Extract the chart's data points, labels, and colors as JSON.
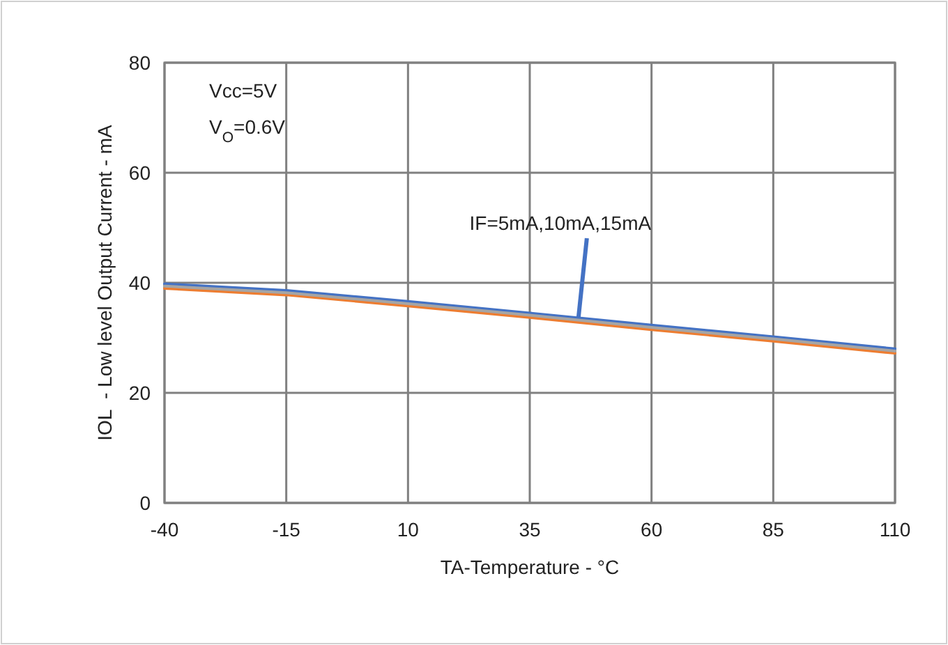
{
  "chart_data": {
    "type": "line",
    "xlabel": "TA-Temperature - °C",
    "ylabel": "IOL  - Low level Output Current - mA",
    "x": [
      -40,
      -15,
      10,
      35,
      60,
      85,
      110
    ],
    "series": [
      {
        "color": "#4472c4",
        "values": [
          39.8,
          38.6,
          36.6,
          34.5,
          32.3,
          30.2,
          28.0
        ]
      },
      {
        "color": "#ed7d31",
        "values": [
          39.0,
          37.8,
          35.8,
          33.7,
          31.5,
          29.4,
          27.2
        ]
      },
      {
        "color": "#a5a5a5",
        "values": [
          39.4,
          38.2,
          36.2,
          34.1,
          31.9,
          29.8,
          27.6
        ]
      }
    ],
    "xlim": [
      -40,
      110
    ],
    "xticks": [
      -40,
      -15,
      10,
      35,
      60,
      85,
      110
    ],
    "ylim": [
      0,
      80
    ],
    "yticks": [
      0,
      20,
      40,
      60,
      80
    ],
    "grid": true,
    "marker": "none",
    "line_style": "solid",
    "annotations": [
      "Vcc=5V",
      "V$_{O}$=0.6V",
      {
        "text": "IF=5mA,10mA,15mA",
        "x": 45,
        "y": 33.7
      }
    ]
  }
}
